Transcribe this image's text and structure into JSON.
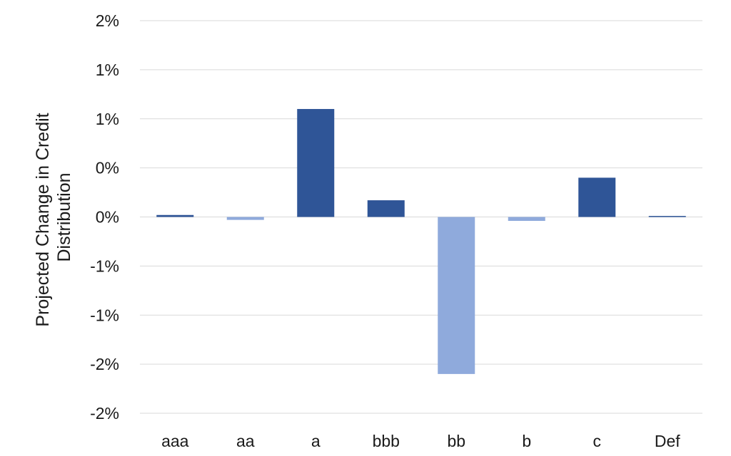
{
  "chart_data": {
    "type": "bar",
    "categories": [
      "aaa",
      "aa",
      "a",
      "bbb",
      "bb",
      "b",
      "c",
      "Def"
    ],
    "values": [
      0.02,
      -0.03,
      1.1,
      0.17,
      -1.6,
      -0.04,
      0.4,
      0.01
    ],
    "ylim": [
      -2,
      2
    ],
    "ytick_values": [
      2,
      1.5,
      1,
      0.5,
      0,
      -0.5,
      -1,
      -1.5,
      -2
    ],
    "ytick_labels": [
      "2%",
      "1%",
      "1%",
      "0%",
      "0%",
      "-1%",
      "-1%",
      "-2%",
      "-2%"
    ],
    "ylabel_lines": [
      "Projected Change in Credit",
      "Distribution"
    ],
    "xlabel": "",
    "title": "",
    "grid": true,
    "legend": "none",
    "colors": {
      "positive": "#2f5597",
      "negative": "#8faadc"
    }
  }
}
